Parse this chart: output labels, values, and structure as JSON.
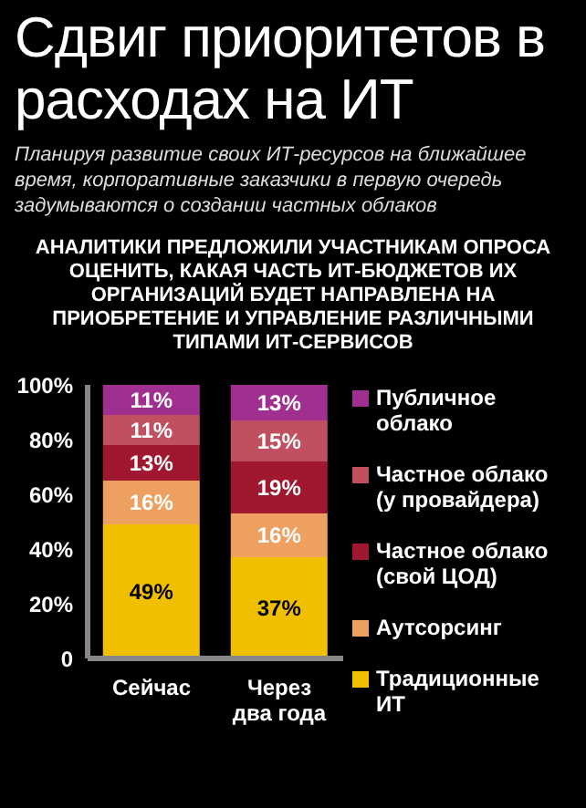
{
  "chart_data": {
    "type": "bar",
    "stacked": true,
    "title": "Сдвиг приоритетов в расходах на ИТ",
    "subtitle": "Планируя развитие своих ИТ-ресурсов на ближайшее время, корпоративные заказчики в первую очередь задумываются о создании частных облаков",
    "annotations": [
      "АНАЛИТИКИ ПРЕДЛОЖИЛИ УЧАСТНИКАМ ОПРОСА ОЦЕНИТЬ, КАКАЯ ЧАСТЬ ИТ-БЮДЖЕТОВ ИХ ОРГАНИЗАЦИЙ БУДЕТ НАПРАВЛЕНА НА ПРИОБРЕТЕНИЕ И УПРАВЛЕНИЕ РАЗЛИЧНЫМИ ТИПАМИ ИТ-СЕРВИСОВ"
    ],
    "categories": [
      "Сейчас",
      "Через два года"
    ],
    "series": [
      {
        "name": "Традиционные ИТ",
        "color": "#f0c000",
        "values": [
          49,
          37
        ],
        "value_labels": [
          "49%",
          "37%"
        ]
      },
      {
        "name": "Аутсорсинг",
        "color": "#eea060",
        "values": [
          16,
          16
        ],
        "value_labels": [
          "16%",
          "16%"
        ]
      },
      {
        "name": "Частное облако (свой ЦОД)",
        "color": "#a01830",
        "values": [
          13,
          19
        ],
        "value_labels": [
          "13%",
          "19%"
        ]
      },
      {
        "name": "Частное облако (у провайдера)",
        "color": "#c05060",
        "values": [
          11,
          15
        ],
        "value_labels": [
          "11%",
          "15%"
        ]
      },
      {
        "name": "Публичное облако",
        "color": "#a03090",
        "values": [
          11,
          13
        ],
        "value_labels": [
          "11%",
          "13%"
        ]
      }
    ],
    "ylim": [
      0,
      100
    ],
    "yticks": [
      {
        "value": 0,
        "label": "0"
      },
      {
        "value": 20,
        "label": "20%"
      },
      {
        "value": 40,
        "label": "40%"
      },
      {
        "value": 60,
        "label": "60%"
      },
      {
        "value": 80,
        "label": "80%"
      },
      {
        "value": 100,
        "label": "100%"
      }
    ],
    "grid": false,
    "legend": "right"
  }
}
